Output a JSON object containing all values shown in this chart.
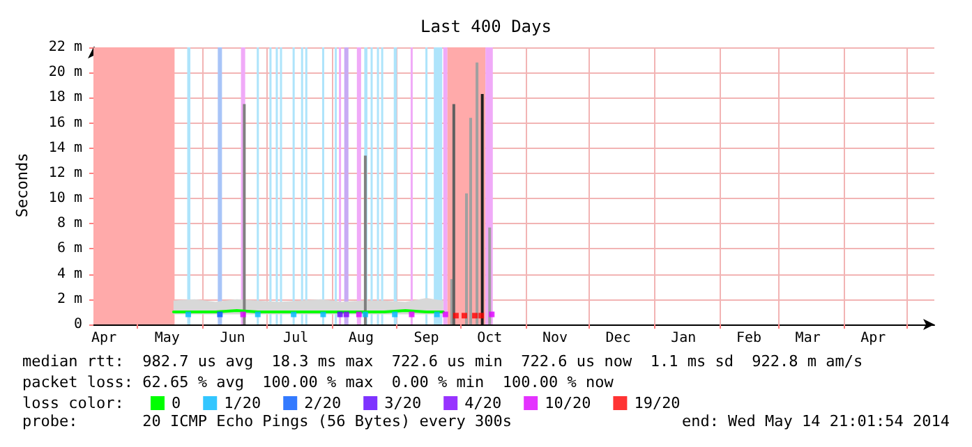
{
  "chart_data": {
    "type": "line",
    "title": "Last 400 Days",
    "ylabel": "Seconds",
    "xlim": [
      "2013-04-10",
      "2014-05-14"
    ],
    "xticks": [
      {
        "value": "2013-05-01",
        "label": null
      },
      {
        "value": "2013-06-01",
        "label": null
      },
      {
        "value": "2013-07-01",
        "label": null
      },
      {
        "value": "2013-08-01",
        "label": null
      },
      {
        "value": "2013-09-01",
        "label": null
      },
      {
        "value": "2013-10-01",
        "label": null
      },
      {
        "value": "2013-11-01",
        "label": null
      },
      {
        "value": "2013-12-01",
        "label": null
      },
      {
        "value": "2014-01-01",
        "label": null
      },
      {
        "value": "2014-02-01",
        "label": null
      },
      {
        "value": "2014-03-01",
        "label": null
      },
      {
        "value": "2014-04-01",
        "label": null
      },
      {
        "value": "2014-05-01",
        "label": null
      },
      {
        "value": "2013-04-15",
        "label": "Apr"
      },
      {
        "value": "2013-05-15",
        "label": "May"
      },
      {
        "value": "2013-06-15",
        "label": "Jun"
      },
      {
        "value": "2013-07-15",
        "label": "Jul"
      },
      {
        "value": "2013-08-15",
        "label": "Aug"
      },
      {
        "value": "2013-09-15",
        "label": "Sep"
      },
      {
        "value": "2013-10-15",
        "label": "Oct"
      },
      {
        "value": "2013-11-15",
        "label": "Nov"
      },
      {
        "value": "2013-12-15",
        "label": "Dec"
      },
      {
        "value": "2014-01-15",
        "label": "Jan"
      },
      {
        "value": "2014-02-15",
        "label": "Feb"
      },
      {
        "value": "2014-03-15",
        "label": "Mar"
      },
      {
        "value": "2014-04-15",
        "label": "Apr"
      }
    ],
    "ylim": [
      0,
      22
    ],
    "yticks": [
      0,
      {
        "value": 2,
        "label": "2 m"
      },
      {
        "value": 4,
        "label": "4 m"
      },
      {
        "value": 6,
        "label": "6 m"
      },
      {
        "value": 8,
        "label": "8 m"
      },
      {
        "value": 10,
        "label": "10 m"
      },
      {
        "value": 12,
        "label": "12 m"
      },
      {
        "value": 14,
        "label": "14 m"
      },
      {
        "value": 16,
        "label": "16 m"
      },
      {
        "value": 18,
        "label": "18 m"
      },
      {
        "value": 20,
        "label": "20 m"
      },
      {
        "value": 22,
        "label": "22 m"
      }
    ],
    "grid": true,
    "legend": "bottom",
    "legend_title": "loss color:",
    "marker": "square",
    "series": [
      {
        "name": "0",
        "marker": "none",
        "color": "#00ff00",
        "x": [
          "2013-05-18",
          "2013-05-28",
          "2013-06-07",
          "2013-06-17",
          "2013-06-27",
          "2013-07-07",
          "2013-07-17",
          "2013-07-27",
          "2013-08-06",
          "2013-08-16",
          "2013-08-26",
          "2013-09-05",
          "2013-09-15",
          "2013-09-23"
        ],
        "values": [
          1,
          1,
          1,
          1.1,
          1,
          1,
          1,
          1,
          1,
          1,
          1,
          1.1,
          1,
          1
        ],
        "lower": [
          0.8,
          0.8,
          0.8,
          0.8,
          0.8,
          0.8,
          0.8,
          0.8,
          0.8,
          0.8,
          0.8,
          0.8,
          0.8,
          0.8
        ],
        "upper": [
          1.9,
          2,
          1.8,
          2,
          1.9,
          1.8,
          1.9,
          2,
          1.8,
          1.9,
          1.9,
          1.8,
          2.1,
          1.9
        ]
      },
      {
        "name": "1/20",
        "type": "scatter",
        "color": "#00b8ff",
        "x": [
          "2013-05-25",
          "2013-06-27",
          "2013-07-14",
          "2013-07-28",
          "2013-08-17",
          "2013-08-31",
          "2013-09-20"
        ],
        "values": [
          0.8,
          0.8,
          0.8,
          0.8,
          0.8,
          0.8,
          0.8
        ]
      },
      {
        "name": "2/20",
        "type": "scatter",
        "color": "#0059ff",
        "x": [
          "2013-06-09"
        ],
        "values": [
          0.8
        ]
      },
      {
        "name": "3/20",
        "type": "scatter",
        "color": "#5e00ff",
        "x": [
          "2013-08-05"
        ],
        "values": [
          0.8
        ]
      },
      {
        "name": "4/20",
        "type": "scatter",
        "color": "#7e00ff",
        "x": [
          "2013-08-08"
        ],
        "values": [
          0.8
        ]
      },
      {
        "name": "10/20",
        "type": "scatter",
        "color": "#dd00ff",
        "x": [
          "2013-06-20",
          "2013-08-14",
          "2013-09-08",
          "2013-09-24",
          "2013-10-16"
        ],
        "values": [
          0.8,
          0.8,
          0.8,
          0.8,
          0.8
        ]
      },
      {
        "name": "19/20",
        "type": "scatter",
        "color": "#ff0000",
        "x": [
          "2013-09-29",
          "2013-10-03",
          "2013-10-08",
          "2013-10-11"
        ],
        "values": [
          0.7,
          0.7,
          0.7,
          0.7
        ]
      },
      {
        "type": "bar",
        "color": "#808080",
        "x": [
          "2013-06-20T14:00",
          "2013-08-17",
          "2013-09-27",
          "2013-09-28",
          "2013-10-04",
          "2013-10-06",
          "2013-10-09",
          "2013-10-11T12:00",
          "2013-10-15"
        ],
        "values": [
          17.5,
          13.4,
          3.6,
          17.5,
          10.4,
          16.4,
          20.8,
          18.3,
          7.7
        ],
        "colors": [
          "#808080",
          "#808080",
          "#a0a0a0",
          "#606060",
          "#a0a0a0",
          "#a0a0a0",
          "#a0a0a0",
          "#202020",
          "#a0a0a0"
        ]
      }
    ],
    "bands": [
      {
        "axis": "x",
        "from": "2013-04-10",
        "to": "2013-05-18T12:00",
        "color": "#ffaaaa"
      },
      {
        "axis": "x",
        "from": "2013-05-24T12:00",
        "to": "2013-05-26",
        "color": "#aee4fb"
      },
      {
        "axis": "x",
        "from": "2013-06-08",
        "to": "2013-06-10",
        "color": "#a8c4f8"
      },
      {
        "axis": "x",
        "from": "2013-06-19",
        "to": "2013-06-21",
        "color": "#f0aaf8"
      },
      {
        "axis": "x",
        "from": "2013-06-26T12:00",
        "to": "2013-06-27T12:00",
        "color": "#aee4fb"
      },
      {
        "axis": "x",
        "from": "2013-07-02T12:00",
        "to": "2013-07-03T12:00",
        "color": "#aee4fb"
      },
      {
        "axis": "x",
        "from": "2013-07-05T12:00",
        "to": "2013-07-06T12:00",
        "color": "#aee4fb"
      },
      {
        "axis": "x",
        "from": "2013-07-07T12:00",
        "to": "2013-07-08T12:00",
        "color": "#aee4fb"
      },
      {
        "axis": "x",
        "from": "2013-07-13T12:00",
        "to": "2013-07-14T12:00",
        "color": "#aee4fb"
      },
      {
        "axis": "x",
        "from": "2013-07-17T12:00",
        "to": "2013-07-18T12:00",
        "color": "#aee4fb"
      },
      {
        "axis": "x",
        "from": "2013-07-19T12:00",
        "to": "2013-07-20T12:00",
        "color": "#aee4fb"
      },
      {
        "axis": "x",
        "from": "2013-07-27T12:00",
        "to": "2013-07-28T12:00",
        "color": "#aee4fb"
      },
      {
        "axis": "x",
        "from": "2013-08-02T12:00",
        "to": "2013-08-03T12:00",
        "color": "#aee4fb"
      },
      {
        "axis": "x",
        "from": "2013-08-04T12:00",
        "to": "2013-08-05T12:00",
        "color": "#f0aaf8"
      },
      {
        "axis": "x",
        "from": "2013-08-07",
        "to": "2013-08-09",
        "color": "#c8aaf4"
      },
      {
        "axis": "x",
        "from": "2013-08-13",
        "to": "2013-08-15",
        "color": "#f0aaf8"
      },
      {
        "axis": "x",
        "from": "2013-08-16T12:00",
        "to": "2013-08-18",
        "color": "#aee4fb"
      },
      {
        "axis": "x",
        "from": "2013-08-19T12:00",
        "to": "2013-08-20T12:00",
        "color": "#aee4fb"
      },
      {
        "axis": "x",
        "from": "2013-08-22T12:00",
        "to": "2013-08-23T12:00",
        "color": "#aee4fb"
      },
      {
        "axis": "x",
        "from": "2013-08-24T12:00",
        "to": "2013-08-25T12:00",
        "color": "#aee4fb"
      },
      {
        "axis": "x",
        "from": "2013-08-30T12:00",
        "to": "2013-09-01",
        "color": "#aee4fb"
      },
      {
        "axis": "x",
        "from": "2013-09-07T12:00",
        "to": "2013-09-08T12:00",
        "color": "#f0aaf8"
      },
      {
        "axis": "x",
        "from": "2013-09-14T12:00",
        "to": "2013-09-15T12:00",
        "color": "#aee4fb"
      },
      {
        "axis": "x",
        "from": "2013-09-18T12:00",
        "to": "2013-09-22T12:00",
        "color": "#aee4fb"
      },
      {
        "axis": "x",
        "from": "2013-09-23",
        "to": "2013-09-25",
        "color": "#f0aaf8"
      },
      {
        "axis": "x",
        "from": "2013-09-25",
        "to": "2013-10-13",
        "color": "#ffaaaa"
      },
      {
        "axis": "x",
        "from": "2013-10-13",
        "to": "2013-10-16T12:00",
        "color": "#f0aaf8"
      }
    ],
    "annotations": [
      "median rtt:  982.7 us avg  18.3 ms max  722.6 us min  722.6 us now  1.1 ms sd  922.8 m am/s",
      "packet loss: 62.65 % avg  100.00 % max  0.00 % min  100.00 % now",
      "probe:       20 ICMP Echo Pings (56 Bytes) every 300s",
      "end: Wed May 14 21:01:54 2014"
    ]
  }
}
